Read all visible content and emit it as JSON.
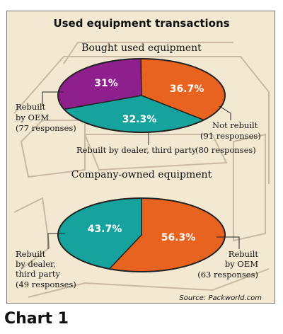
{
  "figure_title": "Used equipment transactions",
  "caption": "Chart 1",
  "source": "Source: Packworld.com",
  "colors": {
    "purple": "#8e1f8c",
    "orange": "#e8631f",
    "teal": "#17a39d",
    "background": "#f3e9d2",
    "sketch": "#c9b9a3"
  },
  "chart_data": [
    {
      "type": "pie",
      "title": "Bought used equipment",
      "slices": [
        {
          "label": "Rebuilt by OEM",
          "responses": "(77 responses)",
          "value": 31,
          "display": "31%",
          "color": "#8e1f8c"
        },
        {
          "label": "Not rebuilt",
          "responses": "(91 responses)",
          "value": 36.7,
          "display": "36.7%",
          "color": "#e8631f"
        },
        {
          "label": "Rebuilt by dealer, third party",
          "responses": "(80 responses)",
          "value": 32.3,
          "display": "32.3%",
          "color": "#17a39d"
        }
      ]
    },
    {
      "type": "pie",
      "title": "Company-owned equipment",
      "slices": [
        {
          "label": "Rebuilt by OEM",
          "responses": "(63 responses)",
          "value": 56.3,
          "display": "56.3%",
          "color": "#e8631f"
        },
        {
          "label": "Rebuilt by dealer, third party",
          "responses": "(49 responses)",
          "value": 43.7,
          "display": "43.7%",
          "color": "#17a39d"
        }
      ]
    }
  ]
}
